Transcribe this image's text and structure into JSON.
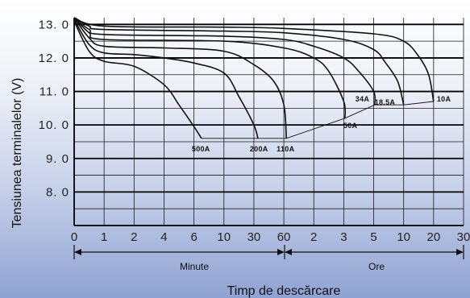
{
  "chart_data": {
    "type": "line",
    "title": "",
    "ylabel": "Tensiunea terminalelor (V)",
    "xlabel": "Timp de descărcare",
    "ylim": [
      7.0,
      13.2
    ],
    "y_ticks": [
      "13. 0",
      "12. 0",
      "11. 0",
      "10. 0",
      "9. 0",
      "8. 0"
    ],
    "y_tick_values": [
      13,
      12,
      11,
      10,
      9,
      8
    ],
    "x_ticks": [
      "0",
      "1",
      "2",
      "4",
      "6",
      "10",
      "30",
      "60",
      "2",
      "3",
      "5",
      "10",
      "20",
      "30"
    ],
    "x_ticks_min": [
      0,
      1,
      2,
      4,
      6,
      10,
      30,
      60,
      120,
      180,
      300,
      600,
      1200,
      1800
    ],
    "x_segments": [
      "Minute",
      "Ore"
    ],
    "grid": true,
    "series": [
      {
        "name": "500A",
        "points": [
          [
            0,
            13.1
          ],
          [
            0.5,
            12.2
          ],
          [
            1,
            11.9
          ],
          [
            2,
            11.75
          ],
          [
            4,
            11.2
          ],
          [
            5,
            10.6
          ],
          [
            6,
            9.95
          ],
          [
            7,
            9.6
          ]
        ]
      },
      {
        "name": "200A",
        "points": [
          [
            0,
            13.15
          ],
          [
            0.5,
            12.4
          ],
          [
            1,
            12.15
          ],
          [
            2,
            12.1
          ],
          [
            4,
            12.0
          ],
          [
            6,
            11.85
          ],
          [
            10,
            11.55
          ],
          [
            20,
            10.85
          ],
          [
            30,
            10.0
          ],
          [
            34,
            9.6
          ]
        ]
      },
      {
        "name": "110A",
        "points": [
          [
            0,
            13.2
          ],
          [
            0.5,
            12.6
          ],
          [
            1,
            12.35
          ],
          [
            4,
            12.3
          ],
          [
            10,
            12.2
          ],
          [
            30,
            11.8
          ],
          [
            50,
            11.3
          ],
          [
            60,
            10.6
          ],
          [
            65,
            9.6
          ]
        ]
      },
      {
        "name": "50A",
        "points": [
          [
            0,
            13.2
          ],
          [
            0.5,
            12.75
          ],
          [
            1,
            12.55
          ],
          [
            10,
            12.5
          ],
          [
            60,
            12.3
          ],
          [
            120,
            12.0
          ],
          [
            150,
            11.6
          ],
          [
            180,
            10.7
          ],
          [
            185,
            10.2
          ]
        ]
      },
      {
        "name": "34A",
        "points": [
          [
            0,
            13.2
          ],
          [
            0.5,
            12.85
          ],
          [
            1,
            12.7
          ],
          [
            10,
            12.65
          ],
          [
            60,
            12.55
          ],
          [
            120,
            12.35
          ],
          [
            180,
            12.0
          ],
          [
            240,
            11.6
          ],
          [
            300,
            11.0
          ],
          [
            310,
            10.6
          ]
        ]
      },
      {
        "name": "18.5A",
        "points": [
          [
            0,
            13.2
          ],
          [
            0.5,
            12.95
          ],
          [
            1,
            12.85
          ],
          [
            10,
            12.8
          ],
          [
            60,
            12.75
          ],
          [
            180,
            12.55
          ],
          [
            300,
            12.25
          ],
          [
            420,
            11.85
          ],
          [
            540,
            11.3
          ],
          [
            600,
            10.6
          ]
        ]
      },
      {
        "name": "10A",
        "points": [
          [
            0,
            13.2
          ],
          [
            1,
            12.95
          ],
          [
            10,
            12.92
          ],
          [
            60,
            12.88
          ],
          [
            300,
            12.72
          ],
          [
            600,
            12.5
          ],
          [
            900,
            12.05
          ],
          [
            1100,
            11.5
          ],
          [
            1200,
            10.7
          ]
        ]
      }
    ],
    "end_voltage_line": [
      [
        7,
        9.6
      ],
      [
        65,
        9.6
      ],
      [
        185,
        10.2
      ],
      [
        310,
        10.6
      ],
      [
        600,
        10.6
      ],
      [
        1200,
        10.7
      ]
    ]
  }
}
